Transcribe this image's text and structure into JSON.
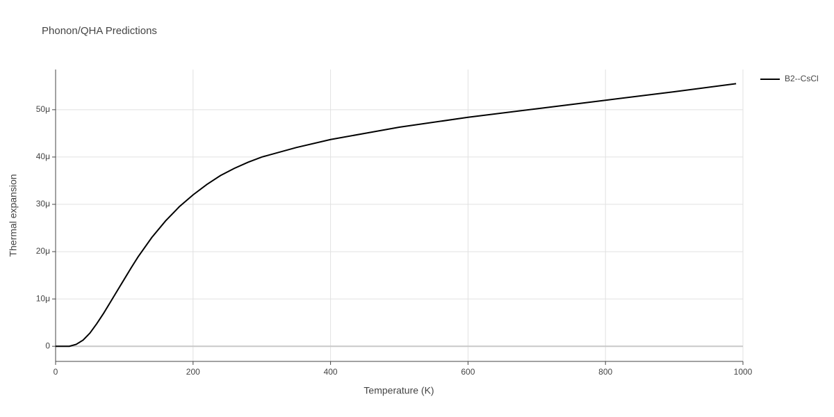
{
  "chart_data": {
    "type": "line",
    "title": "Phonon/QHA Predictions",
    "x_label": "Temperature (K)",
    "y_label": "Thermal expansion",
    "x": [
      0,
      10,
      20,
      30,
      40,
      50,
      60,
      70,
      80,
      90,
      100,
      110,
      120,
      140,
      160,
      180,
      200,
      220,
      240,
      260,
      280,
      300,
      350,
      400,
      450,
      500,
      600,
      700,
      800,
      900,
      990
    ],
    "series": [
      {
        "name": "B2--CsCl",
        "color": "#000000",
        "values": [
          0,
          0,
          0,
          4e-07,
          1.3e-06,
          2.8e-06,
          4.8e-06,
          7e-06,
          9.4e-06,
          1.18e-05,
          1.42e-05,
          1.66e-05,
          1.89e-05,
          2.3e-05,
          2.65e-05,
          2.95e-05,
          3.2e-05,
          3.42e-05,
          3.61e-05,
          3.76e-05,
          3.89e-05,
          4e-05,
          4.2e-05,
          4.37e-05,
          4.5e-05,
          4.63e-05,
          4.84e-05,
          5.02e-05,
          5.2e-05,
          5.38e-05,
          5.55e-05
        ]
      }
    ],
    "xlim": [
      0,
      1000
    ],
    "xticks": [
      0,
      200,
      400,
      600,
      800,
      1000
    ],
    "ylim": [
      -3.2e-06,
      5.85e-05
    ],
    "yticks": [
      0,
      {
        "value": 1e-05,
        "label": "10μ"
      },
      {
        "value": 2e-05,
        "label": "20μ"
      },
      {
        "value": 3e-05,
        "label": "30μ"
      },
      {
        "value": 4e-05,
        "label": "40μ"
      },
      {
        "value": 5e-05,
        "label": "50μ"
      }
    ],
    "grid": true,
    "legend": "top-right"
  }
}
